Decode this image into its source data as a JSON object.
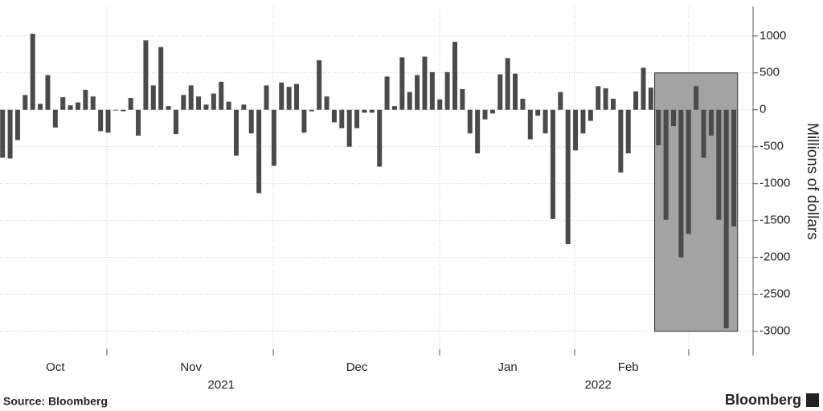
{
  "chart_data": {
    "type": "bar",
    "y_label": "Millions of dollars",
    "source": "Source: Bloomberg",
    "brand": "Bloomberg",
    "color": "#4a4a4a",
    "categories": [
      null,
      null,
      null,
      null,
      null,
      null,
      null,
      "Oct",
      null,
      null,
      null,
      null,
      null,
      null,
      null,
      null,
      null,
      null,
      null,
      null,
      null,
      null,
      null,
      null,
      null,
      "Nov",
      null,
      null,
      null,
      null,
      null,
      null,
      null,
      null,
      null,
      null,
      null,
      null,
      null,
      null,
      null,
      null,
      null,
      null,
      null,
      null,
      null,
      "Dec",
      null,
      null,
      null,
      null,
      null,
      null,
      null,
      null,
      null,
      null,
      null,
      null,
      null,
      null,
      null,
      null,
      null,
      null,
      null,
      "Jan",
      null,
      null,
      null,
      null,
      null,
      null,
      null,
      null,
      null,
      null,
      null,
      null,
      null,
      null,
      null,
      "Feb",
      null,
      null,
      null,
      null,
      null,
      null,
      null,
      null,
      null,
      null,
      null,
      null,
      null,
      null
    ],
    "year_labels": [
      null,
      null,
      null,
      null,
      null,
      null,
      null,
      null,
      null,
      null,
      null,
      null,
      null,
      null,
      null,
      null,
      null,
      null,
      null,
      null,
      null,
      null,
      null,
      null,
      null,
      null,
      null,
      null,
      null,
      "2021",
      null,
      null,
      null,
      null,
      null,
      null,
      null,
      null,
      null,
      null,
      null,
      null,
      null,
      null,
      null,
      null,
      null,
      null,
      null,
      null,
      null,
      null,
      null,
      null,
      null,
      null,
      null,
      null,
      null,
      null,
      null,
      null,
      null,
      null,
      null,
      null,
      null,
      null,
      null,
      null,
      null,
      null,
      null,
      null,
      null,
      null,
      null,
      null,
      null,
      "2022",
      null,
      null,
      null,
      null,
      null,
      null,
      null,
      null,
      null,
      null,
      null,
      null,
      null,
      null,
      null,
      null,
      null,
      null
    ],
    "values": [
      -650,
      -660,
      -410,
      200,
      1030,
      80,
      470,
      -240,
      170,
      60,
      100,
      270,
      180,
      -290,
      -310,
      -10,
      -20,
      160,
      -350,
      940,
      330,
      850,
      50,
      -330,
      200,
      330,
      180,
      70,
      220,
      380,
      110,
      -620,
      70,
      -320,
      -1130,
      330,
      -760,
      370,
      310,
      350,
      -310,
      -20,
      670,
      180,
      -170,
      -250,
      -500,
      -250,
      -40,
      -40,
      -770,
      450,
      50,
      710,
      240,
      470,
      720,
      510,
      140,
      510,
      920,
      280,
      -320,
      -590,
      -130,
      -50,
      480,
      700,
      490,
      150,
      -400,
      -80,
      -320,
      -1480,
      240,
      -1820,
      -550,
      -320,
      -150,
      320,
      290,
      150,
      -850,
      -590,
      250,
      570,
      300,
      -480,
      -1490,
      -220,
      -2000,
      -1680,
      320,
      -650,
      -350,
      -1490,
      -2960,
      -1580
    ],
    "highlight": {
      "start": 87,
      "end": 97,
      "range": [
        -3000,
        500
      ]
    },
    "ylim": [
      -3330,
      1400
    ],
    "yticks": [
      -3000,
      -2500,
      -2000,
      -1500,
      -1000,
      -500,
      0,
      500,
      1000
    ],
    "grid": true
  }
}
